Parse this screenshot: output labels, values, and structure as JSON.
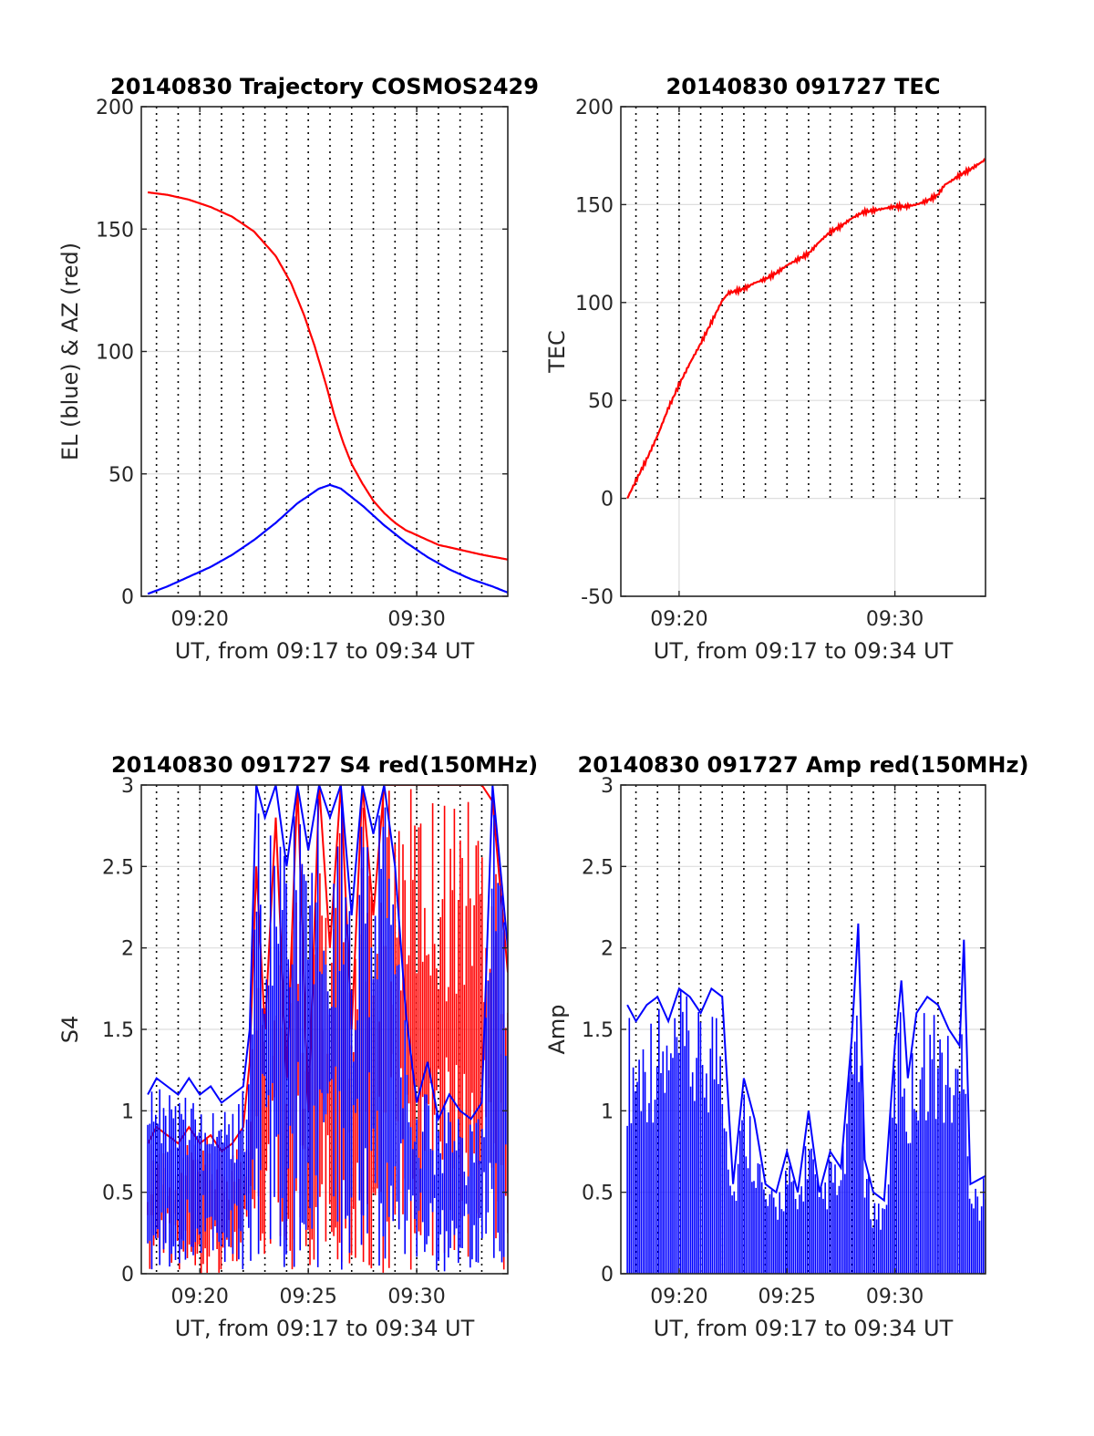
{
  "chart_data": [
    {
      "type": "line",
      "title": "20140830 Trajectory COSMOS2429",
      "xlabel": "UT, from 09:17 to 09:34 UT",
      "ylabel": "EL (blue) & AZ (red)",
      "xlim": [
        17.3,
        34.2
      ],
      "ylim": [
        0,
        200
      ],
      "xticks": [
        {
          "v": 20,
          "label": "09:20"
        },
        {
          "v": 30,
          "label": "09:30"
        }
      ],
      "yticks": [
        {
          "v": 0,
          "label": "0"
        },
        {
          "v": 50,
          "label": "50"
        },
        {
          "v": 100,
          "label": "100"
        },
        {
          "v": 150,
          "label": "150"
        },
        {
          "v": 200,
          "label": "200"
        }
      ],
      "dotted_x": [
        18,
        19,
        20,
        21,
        22,
        23,
        24,
        25,
        26,
        27,
        28,
        29,
        30,
        31,
        32,
        33
      ],
      "grid": true,
      "series": [
        {
          "color": "#ff0000",
          "x": [
            17.6,
            18.5,
            19.5,
            20.5,
            21.5,
            22.5,
            23.5,
            24.2,
            24.8,
            25.3,
            25.8,
            26.2,
            26.6,
            27.0,
            27.5,
            28.0,
            28.5,
            29.0,
            29.5,
            30.0,
            31.0,
            32.0,
            33.0,
            34.2
          ],
          "y": [
            165,
            164,
            162,
            159,
            155,
            149,
            139,
            128,
            115,
            102,
            87,
            74,
            63,
            54,
            46,
            39,
            34,
            30,
            27,
            25,
            21,
            19,
            17,
            15
          ]
        },
        {
          "color": "#0000ff",
          "x": [
            17.6,
            18.5,
            19.5,
            20.5,
            21.5,
            22.5,
            23.5,
            24.5,
            25.5,
            26.0,
            26.5,
            27.5,
            28.5,
            29.5,
            30.5,
            31.5,
            32.5,
            33.5,
            34.2
          ],
          "y": [
            1,
            4,
            8,
            12,
            17,
            23,
            30,
            38,
            44,
            45.5,
            44,
            37,
            29,
            22,
            16,
            11,
            7,
            4,
            1.5
          ]
        }
      ]
    },
    {
      "type": "line",
      "title": "20140830 091727 TEC",
      "xlabel": "UT, from 09:17 to 09:34 UT",
      "ylabel": "TEC",
      "xlim": [
        17.3,
        34.2
      ],
      "ylim": [
        -50,
        200
      ],
      "xticks": [
        {
          "v": 20,
          "label": "09:20"
        },
        {
          "v": 30,
          "label": "09:30"
        }
      ],
      "yticks": [
        {
          "v": -50,
          "label": "-50"
        },
        {
          "v": 0,
          "label": "0"
        },
        {
          "v": 50,
          "label": "50"
        },
        {
          "v": 100,
          "label": "100"
        },
        {
          "v": 150,
          "label": "150"
        },
        {
          "v": 200,
          "label": "200"
        }
      ],
      "dotted_x": [
        18,
        19,
        20,
        21,
        22,
        23,
        24,
        25,
        26,
        27,
        28,
        29,
        30,
        31,
        32,
        33
      ],
      "dotted_ymax": 0,
      "grid": true,
      "series": [
        {
          "color": "#ff0000",
          "x": [
            17.6,
            18.0,
            18.5,
            19.0,
            19.5,
            20.0,
            20.5,
            21.0,
            21.5,
            22.0,
            22.3,
            22.7,
            23.0,
            23.5,
            24.0,
            24.5,
            25.0,
            25.5,
            26.0,
            26.5,
            27.0,
            27.5,
            28.0,
            28.5,
            29.0,
            29.5,
            30.0,
            30.5,
            31.0,
            31.5,
            32.0,
            32.3,
            32.6,
            33.0,
            33.5,
            34.2
          ],
          "y": [
            0,
            9,
            20,
            32,
            46,
            58,
            69,
            79,
            90,
            101,
            105,
            106,
            107,
            110,
            112,
            115,
            119,
            122,
            125,
            131,
            136,
            139,
            143,
            146,
            147,
            148,
            149,
            149,
            150,
            152,
            155,
            160,
            162,
            165,
            168,
            173
          ]
        }
      ]
    },
    {
      "type": "area",
      "title": "20140830 091727 S4 red(150MHz)",
      "xlabel": "UT, from 09:17 to 09:34 UT",
      "ylabel": "S4",
      "xlim": [
        17.3,
        34.2
      ],
      "ylim": [
        0,
        3
      ],
      "xticks": [
        {
          "v": 20,
          "label": "09:20"
        },
        {
          "v": 25,
          "label": "09:25"
        },
        {
          "v": 30,
          "label": "09:30"
        }
      ],
      "yticks": [
        {
          "v": 0,
          "label": "0"
        },
        {
          "v": 0.5,
          "label": "0.5"
        },
        {
          "v": 1,
          "label": "1"
        },
        {
          "v": 1.5,
          "label": "1.5"
        },
        {
          "v": 2,
          "label": "2"
        },
        {
          "v": 2.5,
          "label": "2.5"
        },
        {
          "v": 3,
          "label": "3"
        }
      ],
      "dotted_x": [
        18,
        19,
        20,
        21,
        22,
        23,
        24,
        25,
        26,
        27,
        28,
        29,
        30,
        31,
        32,
        33
      ],
      "grid": true,
      "series": [
        {
          "color": "#ff0000",
          "x": [
            17.6,
            18.0,
            18.5,
            19.0,
            19.5,
            20.0,
            20.5,
            21.0,
            21.5,
            22.0,
            22.3,
            22.6,
            23.0,
            23.5,
            24.0,
            24.5,
            25.0,
            25.5,
            26.0,
            26.5,
            27.0,
            27.5,
            28.0,
            28.5,
            29.0,
            29.5,
            30.0,
            30.5,
            31.0,
            31.5,
            32.0,
            32.5,
            33.0,
            33.5,
            34.2
          ],
          "y": [
            0.8,
            0.9,
            0.85,
            0.8,
            0.9,
            0.8,
            0.85,
            0.75,
            0.8,
            0.9,
            1.3,
            2.5,
            1.5,
            2.8,
            1.2,
            3.0,
            1.0,
            3.0,
            2.0,
            3.0,
            1.5,
            3.0,
            2.2,
            3.0,
            3.0,
            3.0,
            3.0,
            3.0,
            3.0,
            3.0,
            3.0,
            3.0,
            3.0,
            2.9,
            1.85
          ]
        },
        {
          "color": "#0000ff",
          "x": [
            17.6,
            18.0,
            18.5,
            19.0,
            19.5,
            20.0,
            20.5,
            21.0,
            21.5,
            22.0,
            22.3,
            22.6,
            23.0,
            23.5,
            24.0,
            24.5,
            25.0,
            25.5,
            26.0,
            26.5,
            27.0,
            27.5,
            28.0,
            28.5,
            29.0,
            29.5,
            30.0,
            30.5,
            31.0,
            31.5,
            32.0,
            32.5,
            33.0,
            33.5,
            34.2
          ],
          "y": [
            1.1,
            1.2,
            1.15,
            1.1,
            1.2,
            1.1,
            1.15,
            1.05,
            1.1,
            1.15,
            1.5,
            3.0,
            2.8,
            3.0,
            2.5,
            3.0,
            2.6,
            3.0,
            2.8,
            3.0,
            2.2,
            3.0,
            2.7,
            3.0,
            2.5,
            1.6,
            1.05,
            1.3,
            0.95,
            1.1,
            1.0,
            0.95,
            1.05,
            3.0,
            2.0
          ]
        }
      ]
    },
    {
      "type": "area",
      "title": "20140830 091727 Amp red(150MHz)",
      "xlabel": "UT, from 09:17 to 09:34 UT",
      "ylabel": "Amp",
      "xlim": [
        17.3,
        34.2
      ],
      "ylim": [
        0,
        3
      ],
      "xticks": [
        {
          "v": 20,
          "label": "09:20"
        },
        {
          "v": 25,
          "label": "09:25"
        },
        {
          "v": 30,
          "label": "09:30"
        }
      ],
      "yticks": [
        {
          "v": 0,
          "label": "0"
        },
        {
          "v": 0.5,
          "label": "0.5"
        },
        {
          "v": 1,
          "label": "1"
        },
        {
          "v": 1.5,
          "label": "1.5"
        },
        {
          "v": 2,
          "label": "2"
        },
        {
          "v": 2.5,
          "label": "2.5"
        },
        {
          "v": 3,
          "label": "3"
        }
      ],
      "dotted_x": [
        18,
        19,
        20,
        21,
        22,
        23,
        24,
        25,
        26,
        27,
        28,
        29,
        30,
        31,
        32,
        33
      ],
      "grid": true,
      "series": [
        {
          "color": "#0000ff",
          "x": [
            17.6,
            18.0,
            18.5,
            19.0,
            19.5,
            20.0,
            20.5,
            21.0,
            21.5,
            22.0,
            22.5,
            23.0,
            23.5,
            24.0,
            24.5,
            25.0,
            25.5,
            26.0,
            26.5,
            27.0,
            27.5,
            28.0,
            28.3,
            28.6,
            29.0,
            29.5,
            30.0,
            30.3,
            30.6,
            31.0,
            31.5,
            32.0,
            32.5,
            33.0,
            33.2,
            33.5,
            34.2
          ],
          "y": [
            1.65,
            1.55,
            1.65,
            1.7,
            1.55,
            1.75,
            1.7,
            1.6,
            1.75,
            1.7,
            0.55,
            1.2,
            0.95,
            0.55,
            0.5,
            0.75,
            0.5,
            1.0,
            0.5,
            0.75,
            0.65,
            1.45,
            2.15,
            0.7,
            0.5,
            0.45,
            1.4,
            1.8,
            1.2,
            1.6,
            1.7,
            1.65,
            1.5,
            1.4,
            2.05,
            0.55,
            0.6
          ]
        }
      ]
    }
  ]
}
